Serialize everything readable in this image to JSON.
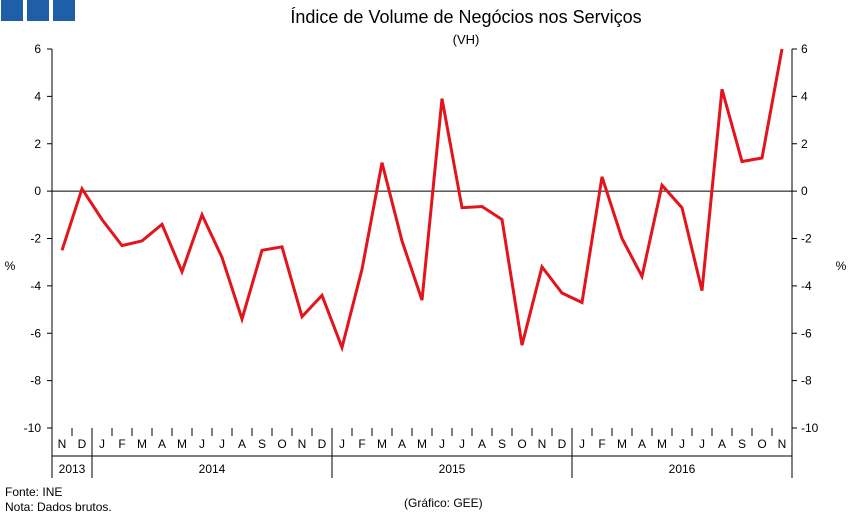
{
  "chart_data": {
    "type": "line",
    "title": "Índice de Volume de Negócios nos Serviços",
    "subtitle": "(VH)",
    "ylabel_left": "%",
    "ylabel_right": "%",
    "ylim": [
      -10,
      6
    ],
    "yticks": [
      6,
      4,
      2,
      0,
      -2,
      -4,
      -6,
      -8,
      -10
    ],
    "month_labels": [
      "N",
      "D",
      "J",
      "F",
      "M",
      "A",
      "M",
      "J",
      "J",
      "A",
      "S",
      "O",
      "N",
      "D",
      "J",
      "F",
      "M",
      "A",
      "M",
      "J",
      "J",
      "A",
      "S",
      "O",
      "N",
      "D",
      "J",
      "F",
      "M",
      "A",
      "M",
      "J",
      "J",
      "A",
      "S",
      "O",
      "N"
    ],
    "year_groups": [
      {
        "label": "2013",
        "start": 0,
        "count": 2
      },
      {
        "label": "2014",
        "start": 2,
        "count": 12
      },
      {
        "label": "2015",
        "start": 14,
        "count": 12
      },
      {
        "label": "2016",
        "start": 26,
        "count": 11
      }
    ],
    "series": [
      {
        "name": "VH",
        "color": "#e3141c",
        "values": [
          -2.5,
          0.1,
          -1.2,
          -2.3,
          -2.1,
          -1.4,
          -3.4,
          -1.0,
          -2.8,
          -5.4,
          -2.5,
          -2.35,
          -5.3,
          -4.4,
          -6.6,
          -3.3,
          1.2,
          -2.1,
          -4.6,
          3.9,
          -0.7,
          -0.65,
          -1.2,
          -6.5,
          -3.2,
          -4.3,
          -4.7,
          0.6,
          -2.0,
          -3.6,
          0.25,
          -0.7,
          -4.2,
          4.3,
          1.25,
          1.4,
          6.0
        ]
      }
    ]
  },
  "footer": {
    "source": "Fonte: INE",
    "note": "Nota: Dados brutos.",
    "credit": "(Gráfico: GEE)"
  },
  "colors": {
    "logo": "#1f5fa8",
    "line": "#e3141c"
  }
}
